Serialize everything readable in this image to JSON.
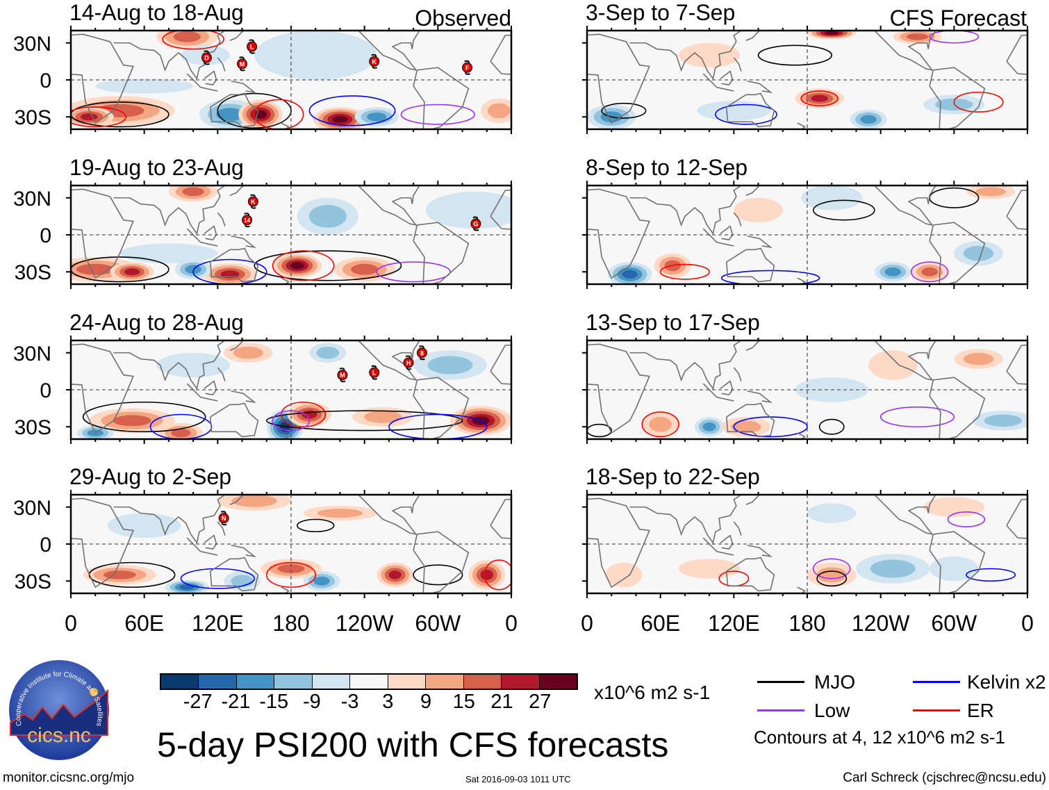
{
  "header": {
    "observed_label": "Observed",
    "forecast_label": "CFS Forecast"
  },
  "panels": {
    "observed": [
      {
        "title": "14-Aug to 18-Aug",
        "storms": [
          "L",
          "D",
          "M",
          "K",
          "F"
        ]
      },
      {
        "title": "19-Aug to 23-Aug",
        "storms": [
          "K",
          "14",
          "G"
        ]
      },
      {
        "title": "24-Aug to 28-Aug",
        "storms": [
          "M",
          "L",
          "H",
          "8"
        ]
      },
      {
        "title": "29-Aug to 2-Sep",
        "storms": [
          "N"
        ]
      }
    ],
    "forecast": [
      {
        "title": "3-Sep to 7-Sep"
      },
      {
        "title": "8-Sep to 12-Sep"
      },
      {
        "title": "13-Sep to 17-Sep"
      },
      {
        "title": "18-Sep to 22-Sep"
      }
    ]
  },
  "axes": {
    "lat_labels": [
      "30N",
      "0",
      "30S"
    ],
    "lon_labels": [
      "0",
      "60E",
      "120E",
      "180",
      "120W",
      "60W",
      "0"
    ]
  },
  "colorbar": {
    "colors": [
      "#0b3a6c",
      "#2467ad",
      "#4494c4",
      "#93c4de",
      "#d2e5f0",
      "#f7f7f7",
      "#fdd9c6",
      "#f4a582",
      "#d6604d",
      "#b2182b",
      "#67001f"
    ],
    "labels": [
      "-27",
      "-21",
      "-15",
      "-9",
      "-3",
      "3",
      "9",
      "15",
      "21",
      "27"
    ],
    "units": "x10^6 m2 s-1"
  },
  "legend": {
    "items": [
      {
        "label": "MJO",
        "color": "#000000"
      },
      {
        "label": "Kelvin x2",
        "color": "#0000ff"
      },
      {
        "label": "Low",
        "color": "#9b30ff"
      },
      {
        "label": "ER",
        "color": "#ff0000"
      }
    ],
    "contours_note": "Contours at 4, 12 x10^6 m2 s-1"
  },
  "title": "5-day PSI200 with CFS forecasts",
  "footer": {
    "url": "monitor.cicsnc.org/mjo",
    "timestamp": "Sat 2016-09-03 1011 UTC",
    "credit": "Carl Schreck (cjschrec@ncsu.edu)"
  },
  "logo": {
    "name": "cics.nc",
    "arc_text": "Cooperative Institute for Climate and Satellites"
  }
}
